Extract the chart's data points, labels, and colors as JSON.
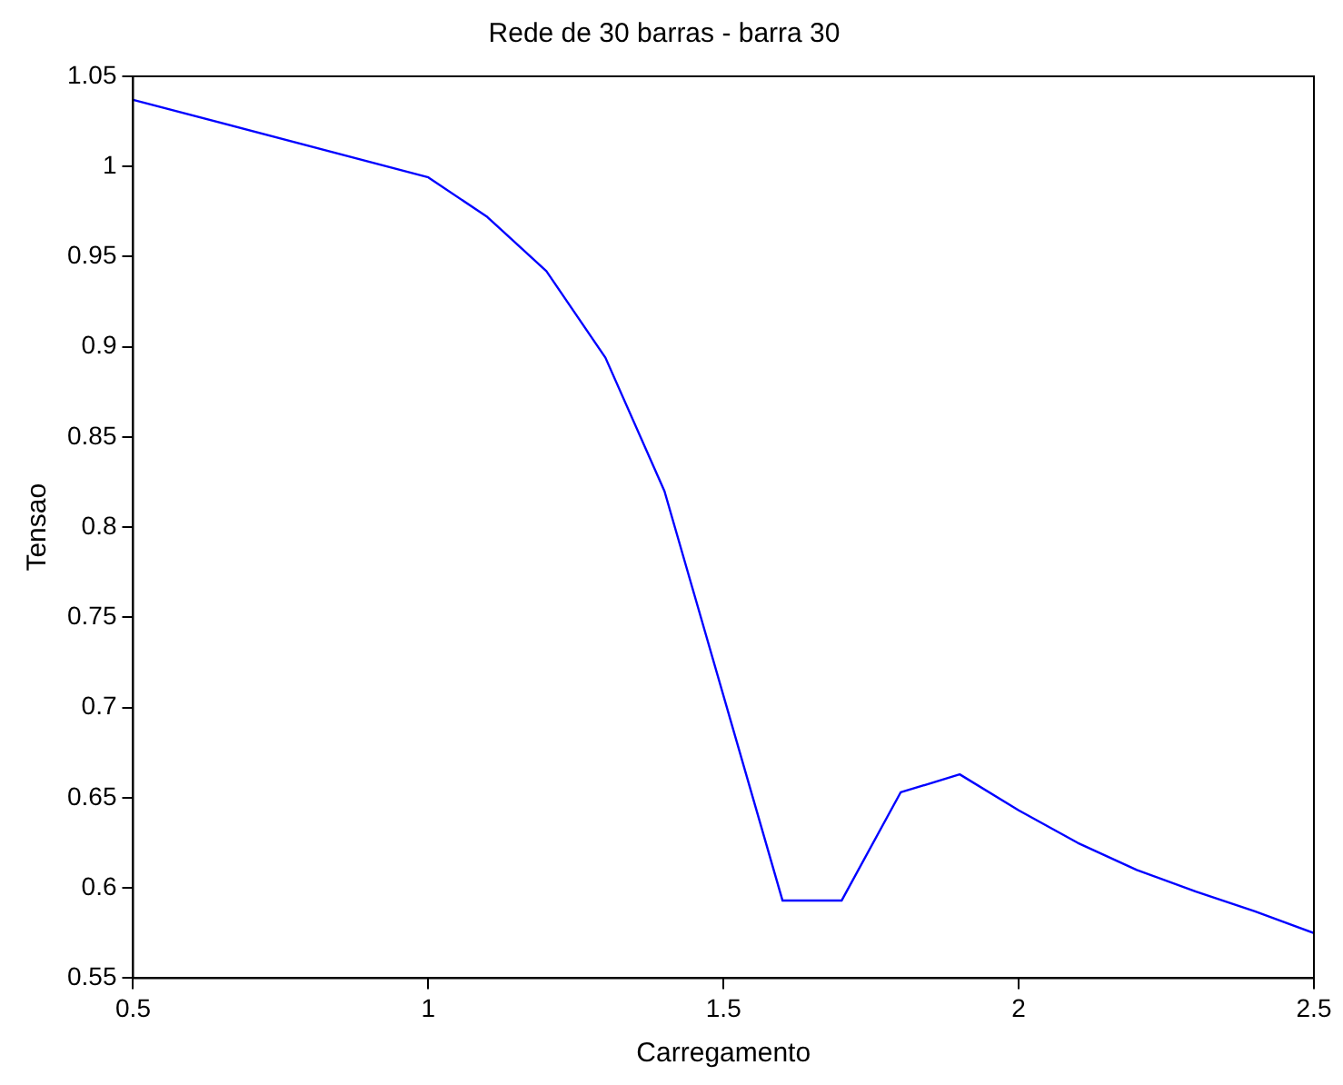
{
  "chart_data": {
    "type": "line",
    "title": "Rede de 30 barras - barra 30",
    "xlabel": "Carregamento",
    "ylabel": "Tensao",
    "x": [
      0.5,
      1.0,
      1.1,
      1.2,
      1.3,
      1.4,
      1.6,
      1.7,
      1.8,
      1.9,
      2.0,
      2.1,
      2.2,
      2.3,
      2.4,
      2.5
    ],
    "series": [
      {
        "color": "#0000ff",
        "values": [
          1.037,
          0.994,
          0.972,
          0.942,
          0.894,
          0.82,
          0.593,
          0.593,
          0.653,
          0.663,
          0.643,
          0.625,
          0.61,
          0.598,
          0.587,
          0.575
        ]
      }
    ],
    "xlim": [
      0.5,
      2.5
    ],
    "xticks": [
      0.5,
      1,
      1.5,
      2,
      2.5
    ],
    "ylim": [
      0.55,
      1.05
    ],
    "yticks": [
      0.55,
      0.6,
      0.65,
      0.7,
      0.75,
      0.8,
      0.85,
      0.9,
      0.95,
      1,
      1.05
    ],
    "grid": false,
    "legend": false,
    "marker": "none",
    "line_style": "solid"
  }
}
